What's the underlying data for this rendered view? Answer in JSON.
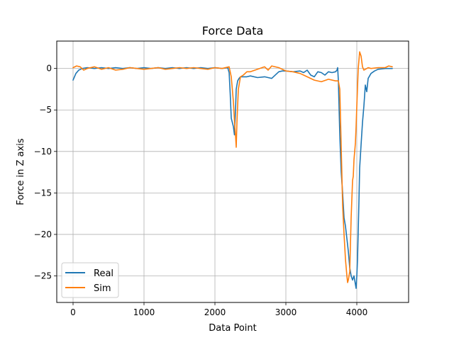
{
  "chart_data": {
    "type": "line",
    "title": "Force Data",
    "xlabel": "Data Point",
    "ylabel": "Force in Z axis",
    "xlim": [
      -230,
      4730
    ],
    "ylim": [
      -28.2,
      3.3
    ],
    "xticks": [
      0,
      1000,
      2000,
      3000,
      4000
    ],
    "yticks": [
      0,
      -5,
      -10,
      -15,
      -20,
      -25
    ],
    "grid": true,
    "legend_position": "lower-left",
    "series": [
      {
        "name": "Real",
        "color": "#1f77b4",
        "x": [
          0,
          40,
          80,
          130,
          200,
          300,
          400,
          500,
          600,
          700,
          800,
          900,
          1000,
          1100,
          1200,
          1300,
          1400,
          1500,
          1600,
          1700,
          1800,
          1900,
          2000,
          2100,
          2180,
          2200,
          2215,
          2230,
          2245,
          2260,
          2275,
          2290,
          2300,
          2320,
          2340,
          2360,
          2400,
          2450,
          2500,
          2600,
          2700,
          2800,
          2900,
          2950,
          3000,
          3100,
          3200,
          3250,
          3300,
          3350,
          3400,
          3450,
          3500,
          3550,
          3600,
          3650,
          3700,
          3720,
          3730,
          3740,
          3760,
          3780,
          3800,
          3820,
          3840,
          3860,
          3880,
          3900,
          3920,
          3940,
          3960,
          3980,
          3990,
          4000,
          4010,
          4020,
          4030,
          4040,
          4060,
          4080,
          4100,
          4120,
          4140,
          4150,
          4160,
          4200,
          4250,
          4300,
          4400,
          4500
        ],
        "values": [
          -1.4,
          -0.6,
          -0.2,
          0.0,
          0.1,
          0.0,
          0.1,
          0.0,
          0.1,
          0.0,
          0.1,
          0.0,
          0.1,
          0.0,
          0.1,
          0.0,
          0.1,
          0.0,
          0.1,
          0.0,
          0.1,
          0.0,
          0.1,
          0.0,
          0.1,
          -0.5,
          -3.0,
          -6.0,
          -6.5,
          -7.0,
          -8.0,
          -5.0,
          -2.5,
          -1.5,
          -1.2,
          -1.0,
          -1.0,
          -1.0,
          -0.9,
          -1.1,
          -1.0,
          -1.2,
          -0.4,
          -0.3,
          -0.3,
          -0.4,
          -0.3,
          -0.5,
          -0.2,
          -0.8,
          -1.0,
          -0.4,
          -0.5,
          -0.8,
          -0.4,
          -0.5,
          -0.4,
          -0.2,
          0.1,
          -1.5,
          -8.0,
          -12.5,
          -15.0,
          -18.0,
          -19.0,
          -20.5,
          -22.0,
          -24.0,
          -25.0,
          -25.5,
          -25.0,
          -26.0,
          -26.5,
          -25.0,
          -23.0,
          -19.5,
          -16.0,
          -12.0,
          -9.2,
          -6.5,
          -4.5,
          -2.0,
          -2.8,
          -2.0,
          -1.2,
          -0.6,
          -0.3,
          -0.1,
          0.0,
          0.0
        ]
      },
      {
        "name": "Sim",
        "color": "#ff7f0e",
        "x": [
          0,
          50,
          100,
          150,
          200,
          300,
          400,
          500,
          600,
          700,
          800,
          900,
          1000,
          1100,
          1200,
          1300,
          1400,
          1500,
          1600,
          1700,
          1800,
          1900,
          2000,
          2100,
          2200,
          2230,
          2245,
          2260,
          2270,
          2280,
          2290,
          2300,
          2310,
          2330,
          2360,
          2400,
          2450,
          2500,
          2600,
          2700,
          2750,
          2800,
          2900,
          3000,
          3100,
          3200,
          3300,
          3400,
          3500,
          3600,
          3700,
          3740,
          3760,
          3780,
          3800,
          3820,
          3840,
          3860,
          3870,
          3880,
          3900,
          3920,
          3940,
          3950,
          3960,
          3970,
          3980,
          3990,
          4000,
          4020,
          4040,
          4060,
          4080,
          4100,
          4120,
          4140,
          4160,
          4200,
          4300,
          4400,
          4450,
          4500
        ],
        "values": [
          0.1,
          0.3,
          0.2,
          -0.2,
          0.0,
          0.2,
          -0.1,
          0.1,
          -0.2,
          -0.1,
          0.1,
          0.0,
          -0.1,
          0.0,
          0.1,
          -0.1,
          0.0,
          0.1,
          0.0,
          0.1,
          0.0,
          -0.1,
          0.1,
          0.0,
          0.2,
          -1.0,
          -2.5,
          -4.0,
          -5.5,
          -7.0,
          -8.0,
          -9.5,
          -6.5,
          -2.5,
          -1.0,
          -0.8,
          -0.4,
          -0.4,
          -0.1,
          0.2,
          -0.2,
          0.3,
          0.1,
          -0.3,
          -0.4,
          -0.6,
          -1.0,
          -1.4,
          -1.6,
          -1.3,
          -1.5,
          -1.5,
          -2.5,
          -9.5,
          -16.5,
          -20.0,
          -23.0,
          -25.0,
          -25.8,
          -25.5,
          -24.5,
          -18.0,
          -13.5,
          -13.0,
          -11.0,
          -10.0,
          -9.0,
          -7.0,
          -4.5,
          0.0,
          2.0,
          1.5,
          0.2,
          -0.2,
          -0.1,
          0.0,
          0.1,
          0.0,
          0.1,
          0.1,
          0.3,
          0.2
        ]
      }
    ]
  }
}
